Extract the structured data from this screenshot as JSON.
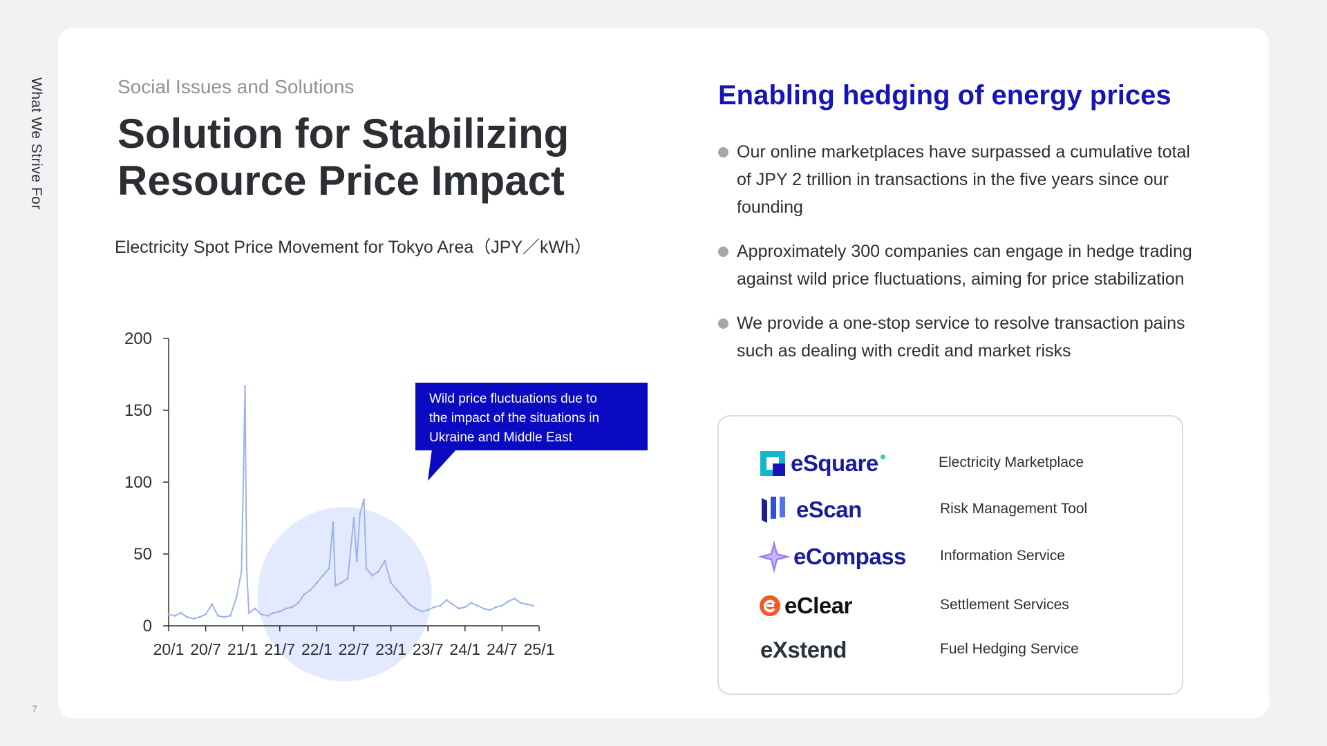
{
  "side_label": "What We Strive For",
  "page_number": "7",
  "eyebrow": "Social Issues and Solutions",
  "title_lines": [
    "Solution for Stabilizing",
    "Resource Price Impact"
  ],
  "chart_caption": "Electricity Spot Price Movement for Tokyo Area（JPY／kWh）",
  "right_heading": "Enabling hedging of energy prices",
  "bullets": [
    "Our online marketplaces have surpassed a cumulative total of JPY 2 trillion in transactions in the five years since our founding",
    "Approximately 300 companies can engage in hedge trading against wild price fluctuations, aiming for price stabilization",
    "We provide a one-stop service to resolve transaction pains such as dealing with credit and market risks"
  ],
  "products": [
    {
      "logo": "eSquare",
      "icon": "esquare-logo-icon",
      "desc": "Electricity Marketplace"
    },
    {
      "logo": "eScan",
      "icon": "escan-logo-icon",
      "desc": "Risk Management Tool"
    },
    {
      "logo": "eCompass",
      "icon": "ecompass-logo-icon",
      "desc": "Information Service"
    },
    {
      "logo": "eClear",
      "icon": "eclear-logo-icon",
      "desc": "Settlement Services"
    },
    {
      "logo": "eXstend",
      "icon": "exstend-logo-icon",
      "desc": "Fuel Hedging Service"
    }
  ],
  "colors": {
    "accent": "#1515b5",
    "callout": "#0a0ac2",
    "series": "#9db3ec",
    "highlight": "#e3eafd"
  },
  "chart_data": {
    "type": "line",
    "title": "Electricity Spot Price Movement for Tokyo Area（JPY／kWh）",
    "xlabel": "",
    "ylabel": "",
    "ylim": [
      0,
      200
    ],
    "yticks": [
      0,
      50,
      100,
      150,
      200
    ],
    "xticks": [
      "20/1",
      "20/7",
      "21/1",
      "21/7",
      "22/1",
      "22/7",
      "23/1",
      "23/7",
      "24/1",
      "24/7",
      "25/1"
    ],
    "annotation": "Wild price fluctuations due to the impact of the situations in Ukraine and Middle East",
    "series": [
      {
        "x": [
          "2020-01",
          "2020-02",
          "2020-03",
          "2020-04",
          "2020-05",
          "2020-06",
          "2020-07",
          "2020-08",
          "2020-09",
          "2020-10",
          "2020-11",
          "2020-12",
          "2020-12-25",
          "2021-01-05",
          "2021-01-12",
          "2021-01-20",
          "2021-02",
          "2021-03",
          "2021-04",
          "2021-05",
          "2021-06",
          "2021-07",
          "2021-08",
          "2021-09",
          "2021-10",
          "2021-11",
          "2021-12",
          "2022-01",
          "2022-02",
          "2022-03",
          "2022-03-20",
          "2022-04",
          "2022-05",
          "2022-06",
          "2022-07",
          "2022-07-15",
          "2022-08",
          "2022-08-20",
          "2022-09",
          "2022-10",
          "2022-11",
          "2022-12",
          "2023-01",
          "2023-02",
          "2023-03",
          "2023-04",
          "2023-05",
          "2023-06",
          "2023-07",
          "2023-08",
          "2023-09",
          "2023-10",
          "2023-11",
          "2023-12",
          "2024-01",
          "2024-02",
          "2024-03",
          "2024-04",
          "2024-05",
          "2024-06",
          "2024-07",
          "2024-08",
          "2024-09",
          "2024-10",
          "2024-11",
          "2024-12"
        ],
        "values": [
          8,
          7,
          9,
          6,
          5,
          6,
          8,
          15,
          7,
          6,
          7,
          20,
          38,
          110,
          167,
          40,
          9,
          12,
          8,
          7,
          9,
          10,
          12,
          13,
          16,
          22,
          25,
          30,
          35,
          40,
          72,
          28,
          30,
          33,
          75,
          45,
          78,
          88,
          40,
          35,
          38,
          45,
          30,
          25,
          20,
          15,
          12,
          10,
          11,
          13,
          14,
          18,
          15,
          12,
          13,
          16,
          14,
          12,
          11,
          13,
          14,
          17,
          19,
          16,
          15,
          14
        ]
      }
    ]
  }
}
